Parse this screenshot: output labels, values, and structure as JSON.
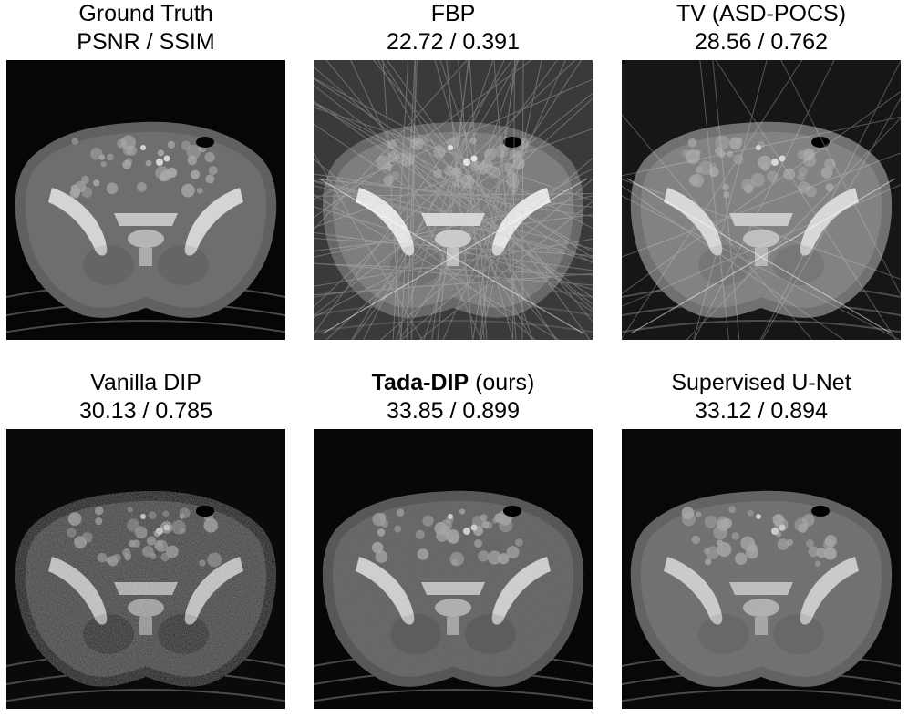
{
  "figure": {
    "panels": [
      {
        "method": "Ground Truth",
        "method_bold": "",
        "method_suffix": "",
        "metrics": "PSNR / SSIM",
        "style": "gt"
      },
      {
        "method": "FBP",
        "method_bold": "",
        "method_suffix": "",
        "metrics": "22.72 / 0.391",
        "style": "fbp"
      },
      {
        "method": "TV (ASD-POCS)",
        "method_bold": "",
        "method_suffix": "",
        "metrics": "28.56 / 0.762",
        "style": "tv"
      },
      {
        "method": "Vanilla DIP",
        "method_bold": "",
        "method_suffix": "",
        "metrics": "30.13 / 0.785",
        "style": "dip"
      },
      {
        "method": "",
        "method_bold": "Tada-DIP",
        "method_suffix": " (ours)",
        "metrics": "33.85 / 0.899",
        "style": "tada"
      },
      {
        "method": "Supervised U-Net",
        "method_bold": "",
        "method_suffix": "",
        "metrics": "33.12 / 0.894",
        "style": "unet"
      }
    ]
  }
}
